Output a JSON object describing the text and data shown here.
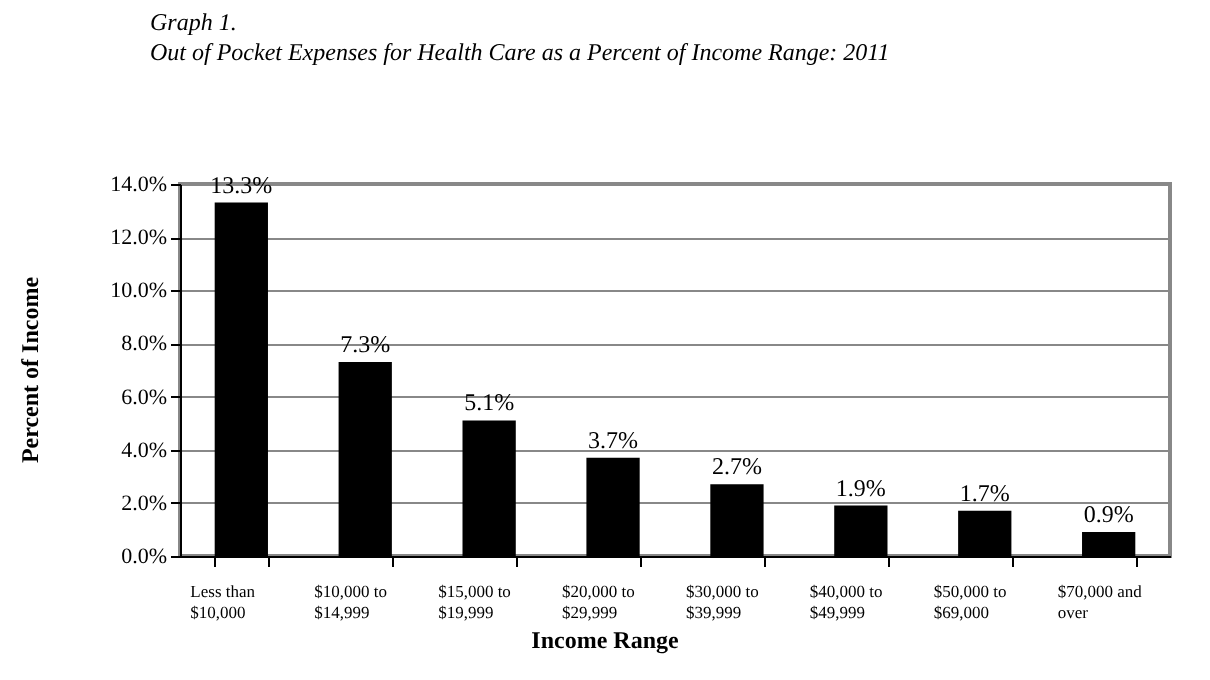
{
  "chart_data": {
    "type": "bar",
    "title": "Graph 1.",
    "subtitle": "Out of Pocket Expenses for Health Care as a Percent of Income Range: 2011",
    "xlabel": "Income Range",
    "ylabel": "Percent of Income",
    "categories": [
      "Less than $10,000",
      "$10,000 to $14,999",
      "$15,000 to $19,999",
      "$20,000 to $29,999",
      "$30,000 to $39,999",
      "$40,000 to $49,999",
      "$50,000 to $69,000",
      "$70,000 and over"
    ],
    "values": [
      13.3,
      7.3,
      5.1,
      3.7,
      2.7,
      1.9,
      1.7,
      0.9
    ],
    "value_labels": [
      "13.3%",
      "7.3%",
      "5.1%",
      "3.7%",
      "2.7%",
      "1.9%",
      "1.7%",
      "0.9%"
    ],
    "color": "#000000",
    "ylim": [
      0,
      14
    ],
    "yticks": [
      {
        "value": 0,
        "label": "0.0%"
      },
      {
        "value": 2,
        "label": "2.0%"
      },
      {
        "value": 4,
        "label": "4.0%"
      },
      {
        "value": 6,
        "label": "6.0%"
      },
      {
        "value": 8,
        "label": "8.0%"
      },
      {
        "value": 10,
        "label": "10.0%"
      },
      {
        "value": 12,
        "label": "12.0%"
      },
      {
        "value": 14,
        "label": "14.0%"
      }
    ],
    "grid": "y"
  }
}
